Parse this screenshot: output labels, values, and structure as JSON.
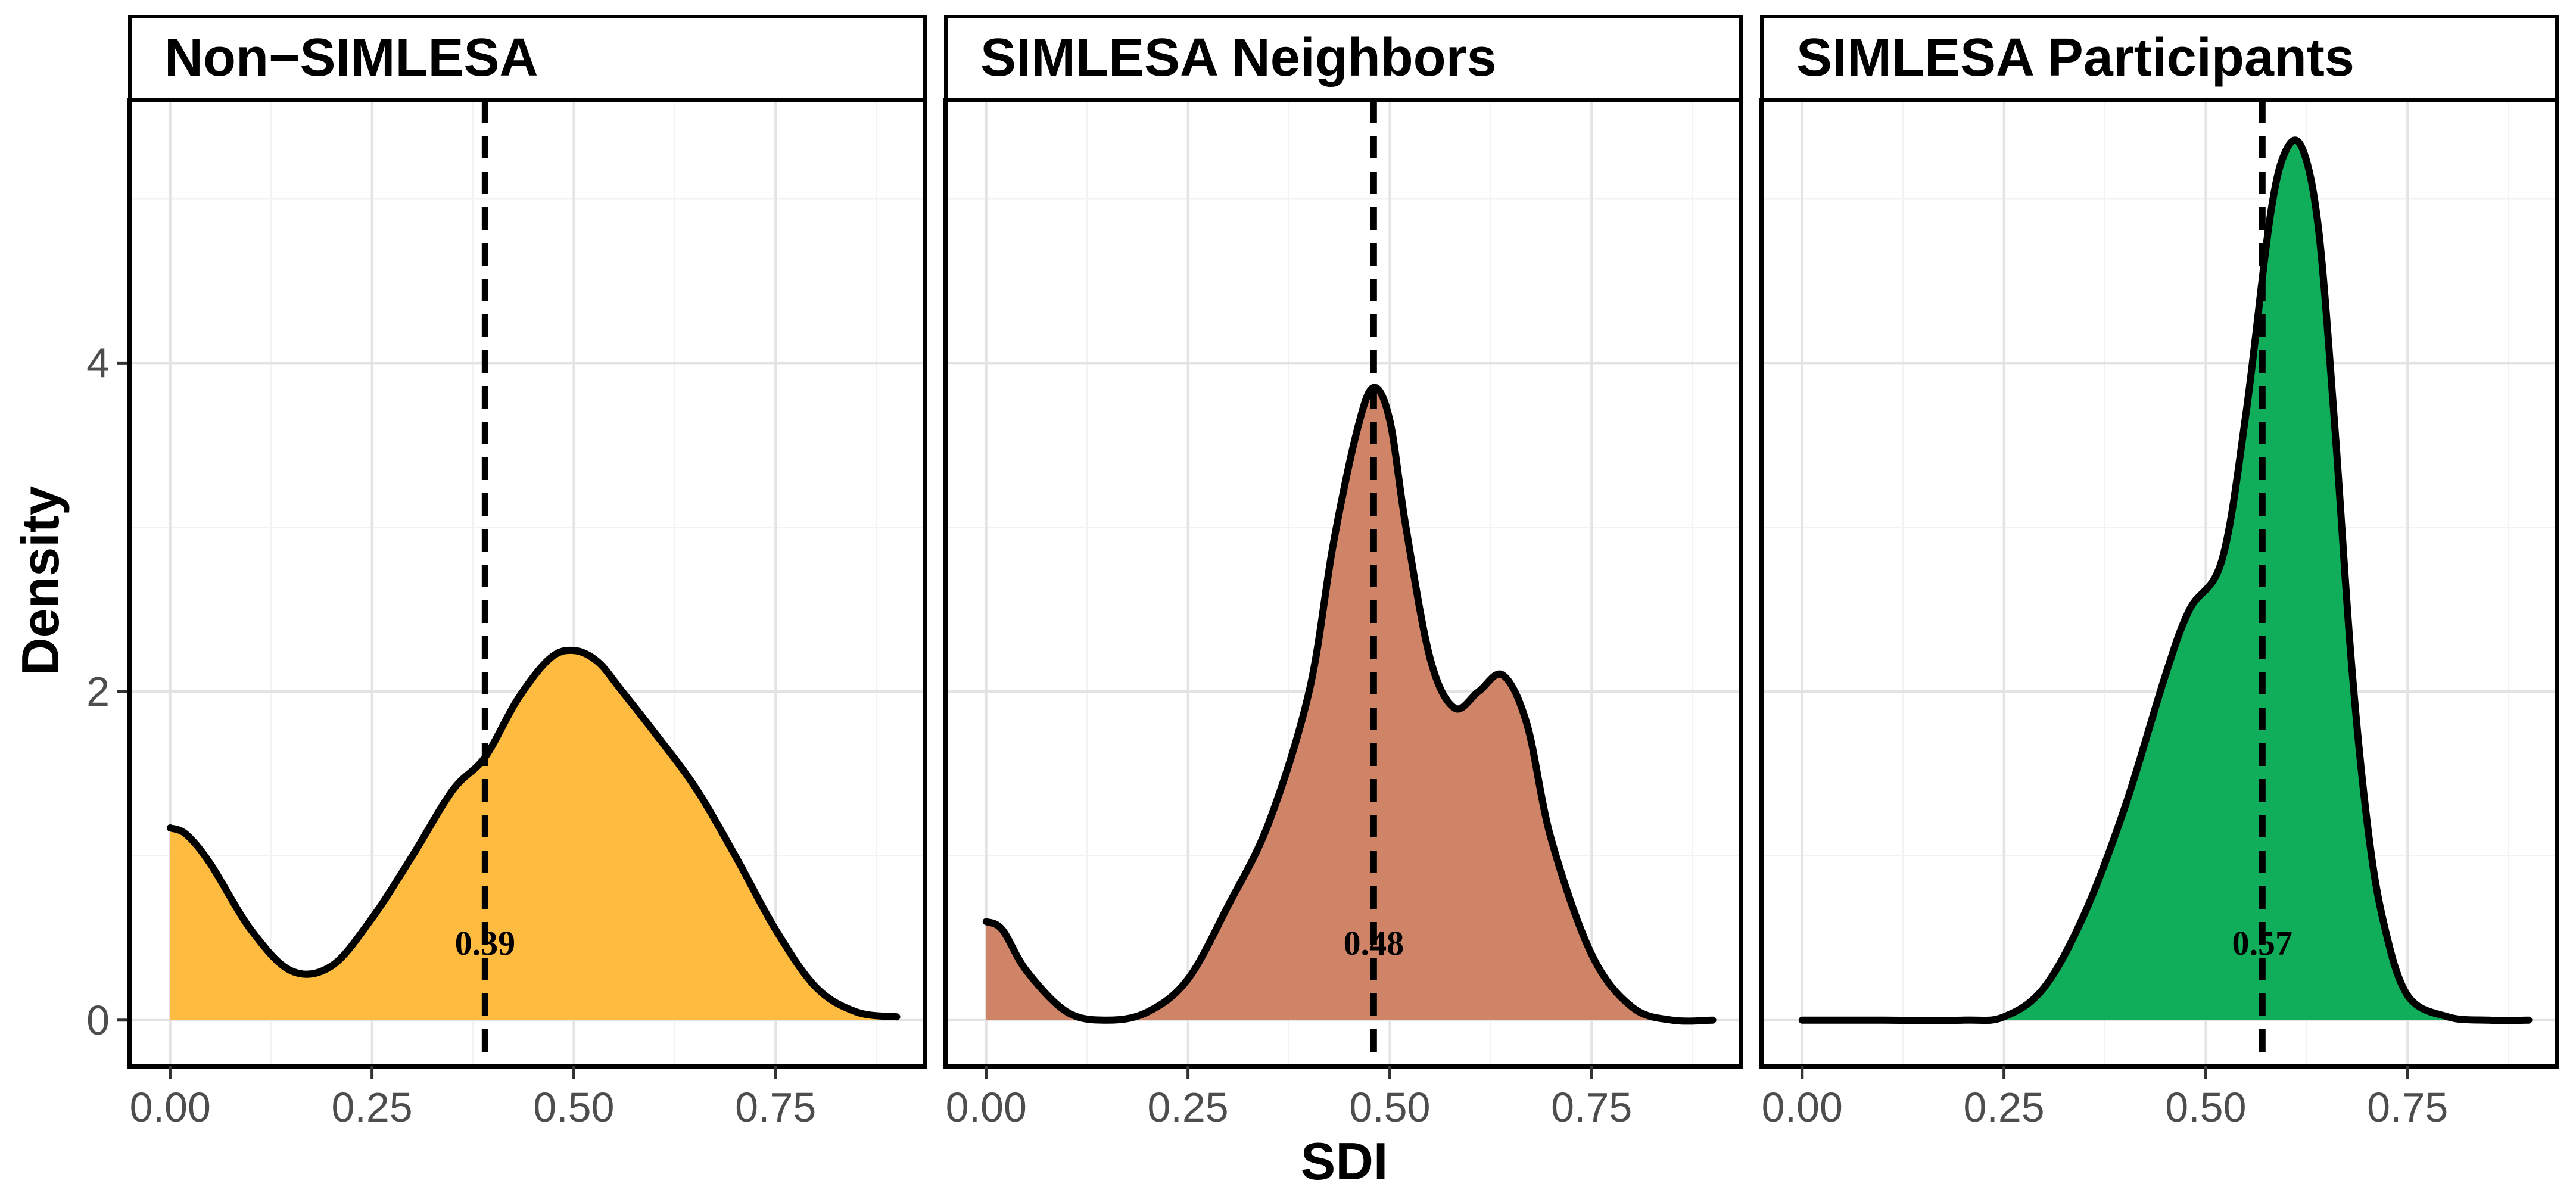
{
  "chart_data": {
    "type": "area",
    "kind": "faceted density plot",
    "xlabel": "SDI",
    "ylabel": "Density",
    "xlim": [
      -0.05,
      0.935
    ],
    "ylim": [
      -0.28,
      5.6
    ],
    "xticks": [
      0.0,
      0.25,
      0.5,
      0.75
    ],
    "xtick_labels": [
      "0.00",
      "0.25",
      "0.50",
      "0.75"
    ],
    "yticks": [
      0,
      2,
      4
    ],
    "ytick_labels": [
      "0",
      "2",
      "4"
    ],
    "grid": true,
    "legend": "none",
    "mean_label_y": 0.47,
    "panels": [
      {
        "title": "Non−SIMLESA",
        "fill": "#FDBB3F",
        "mean": 0.39,
        "mean_label": "0.39",
        "x": [
          0.0,
          0.02,
          0.05,
          0.1,
          0.15,
          0.2,
          0.25,
          0.3,
          0.35,
          0.39,
          0.43,
          0.47,
          0.5,
          0.53,
          0.56,
          0.6,
          0.65,
          0.7,
          0.75,
          0.8,
          0.85,
          0.9
        ],
        "y": [
          1.17,
          1.13,
          0.95,
          0.55,
          0.3,
          0.33,
          0.62,
          1.0,
          1.4,
          1.6,
          1.95,
          2.2,
          2.25,
          2.18,
          2.0,
          1.75,
          1.42,
          1.0,
          0.55,
          0.2,
          0.05,
          0.02
        ]
      },
      {
        "title": "SIMLESA Neighbors",
        "fill": "#CF8467",
        "mean": 0.48,
        "mean_label": "0.48",
        "x": [
          0.0,
          0.02,
          0.05,
          0.1,
          0.15,
          0.2,
          0.25,
          0.3,
          0.35,
          0.4,
          0.43,
          0.46,
          0.48,
          0.5,
          0.52,
          0.55,
          0.58,
          0.61,
          0.64,
          0.67,
          0.7,
          0.75,
          0.8,
          0.85,
          0.9
        ],
        "y": [
          0.6,
          0.55,
          0.3,
          0.05,
          0.0,
          0.05,
          0.25,
          0.7,
          1.2,
          2.0,
          2.9,
          3.6,
          3.85,
          3.65,
          3.0,
          2.2,
          1.9,
          2.0,
          2.1,
          1.8,
          1.1,
          0.4,
          0.08,
          0.0,
          0.0
        ]
      },
      {
        "title": "SIMLESA Participants",
        "fill": "#10AD5A",
        "mean": 0.57,
        "mean_label": "0.57",
        "x": [
          0.0,
          0.1,
          0.2,
          0.25,
          0.3,
          0.35,
          0.4,
          0.45,
          0.48,
          0.52,
          0.55,
          0.58,
          0.6,
          0.62,
          0.64,
          0.66,
          0.68,
          0.7,
          0.72,
          0.75,
          0.8,
          0.85,
          0.9
        ],
        "y": [
          0.0,
          0.0,
          0.0,
          0.02,
          0.2,
          0.65,
          1.3,
          2.1,
          2.5,
          2.8,
          3.7,
          4.9,
          5.3,
          5.3,
          4.8,
          3.6,
          2.2,
          1.2,
          0.6,
          0.15,
          0.02,
          0.0,
          0.0
        ]
      }
    ]
  }
}
